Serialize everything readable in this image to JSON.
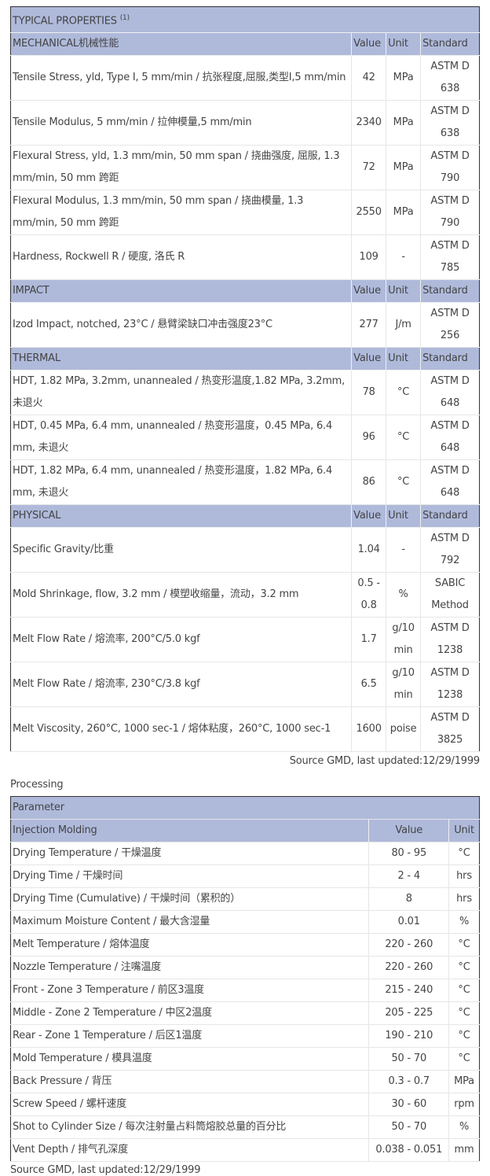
{
  "properties": {
    "title": "TYPICAL PROPERTIES",
    "title_sup": "(1)",
    "columns": {
      "value": "Value",
      "unit": "Unit",
      "standard": "Standard"
    },
    "sections": [
      {
        "name": "MECHANICAL机械性能",
        "rows": [
          {
            "p": "Tensile Stress, yld, Type I, 5 mm/min / 抗张程度,屈服,类型I,5 mm/min",
            "v": "42",
            "u": "MPa",
            "s": "ASTM D 638"
          },
          {
            "p": "Tensile Modulus, 5 mm/min / 拉伸模量,5 mm/min",
            "v": "2340",
            "u": "MPa",
            "s": "ASTM D 638"
          },
          {
            "p": "Flexural Stress, yld, 1.3 mm/min, 50 mm span / 挠曲强度, 屈服, 1.3 mm/min, 50 mm 跨距",
            "v": "72",
            "u": "MPa",
            "s": "ASTM D 790"
          },
          {
            "p": "Flexural Modulus, 1.3 mm/min, 50 mm span / 挠曲模量, 1.3 mm/min, 50 mm 跨距",
            "v": "2550",
            "u": "MPa",
            "s": "ASTM D 790"
          },
          {
            "p": "Hardness, Rockwell R / 硬度, 洛氏 R",
            "v": "109",
            "u": "-",
            "s": "ASTM D 785"
          }
        ]
      },
      {
        "name": "IMPACT",
        "rows": [
          {
            "p": "Izod Impact, notched, 23°C / 悬臂梁缺口冲击强度23°C",
            "v": "277",
            "u": "J/m",
            "s": "ASTM D 256"
          }
        ]
      },
      {
        "name": "THERMAL",
        "rows": [
          {
            "p": "HDT, 1.82 MPa, 3.2mm, unannealed / 热变形温度,1.82 MPa, 3.2mm,未退火",
            "v": "78",
            "u": "°C",
            "s": "ASTM D 648"
          },
          {
            "p": "HDT, 0.45 MPa, 6.4 mm, unannealed / 热变形温度，0.45 MPa, 6.4 mm, 未退火",
            "v": "96",
            "u": "°C",
            "s": "ASTM D 648"
          },
          {
            "p": "HDT, 1.82 MPa, 6.4 mm, unannealed / 热变形温度，1.82 MPa, 6.4 mm, 未退火",
            "v": "86",
            "u": "°C",
            "s": "ASTM D 648"
          }
        ]
      },
      {
        "name": "PHYSICAL",
        "rows": [
          {
            "p": "Specific Gravity/比重",
            "v": "1.04",
            "u": "-",
            "s": "ASTM D 792"
          },
          {
            "p": "Mold Shrinkage, flow, 3.2 mm / 模塑收缩量，流动，3.2 mm",
            "v": "0.5 - 0.8",
            "u": "%",
            "s": "SABIC Method"
          },
          {
            "p": "Melt Flow Rate / 熔流率, 200°C/5.0 kgf",
            "v": "1.7",
            "u": "g/10 min",
            "s": "ASTM D 1238"
          },
          {
            "p": "Melt Flow Rate / 熔流率, 230°C/3.8 kgf",
            "v": "6.5",
            "u": "g/10 min",
            "s": "ASTM D 1238"
          },
          {
            "p": "Melt Viscosity, 260°C, 1000 sec-1 / 熔体粘度，260°C, 1000 sec-1",
            "v": "1600",
            "u": "poise",
            "s": "ASTM D 3825"
          }
        ]
      }
    ],
    "source": "Source GMD, last updated:12/29/1999"
  },
  "processing": {
    "heading": "Processing",
    "parameter": "Parameter",
    "section": "Injection Molding",
    "value": "Value",
    "unit": "Unit",
    "rows": [
      {
        "p": "Drying Temperature / 干燥温度",
        "v": "80 - 95",
        "u": "°C"
      },
      {
        "p": "Drying Time / 干燥时间",
        "v": "2 - 4",
        "u": "hrs"
      },
      {
        "p": "Drying Time (Cumulative) / 干燥时间（累积的）",
        "v": "8",
        "u": "hrs"
      },
      {
        "p": "Maximum Moisture Content / 最大含湿量",
        "v": "0.01",
        "u": "%"
      },
      {
        "p": "Melt Temperature / 熔体温度",
        "v": "220 - 260",
        "u": "°C"
      },
      {
        "p": "Nozzle Temperature / 注嘴温度",
        "v": "220 - 260",
        "u": "°C"
      },
      {
        "p": "Front - Zone 3 Temperature / 前区3温度",
        "v": "215 - 240",
        "u": "°C"
      },
      {
        "p": "Middle - Zone 2 Temperature / 中区2温度",
        "v": "205 - 225",
        "u": "°C"
      },
      {
        "p": "Rear - Zone 1 Temperature / 后区1温度",
        "v": "190 - 210",
        "u": "°C"
      },
      {
        "p": "Mold Temperature / 模具温度",
        "v": "50 - 70",
        "u": "°C"
      },
      {
        "p": "Back Pressure / 背压",
        "v": "0.3 - 0.7",
        "u": "MPa"
      },
      {
        "p": "Screw Speed / 螺杆速度",
        "v": "30 - 60",
        "u": "rpm"
      },
      {
        "p": "Shot to Cylinder Size / 每次注射量占料筒熔胶总量的百分比",
        "v": "50 - 70",
        "u": "%"
      },
      {
        "p": "Vent Depth / 排气孔深度",
        "v": "0.038 - 0.051",
        "u": "mm"
      }
    ],
    "source": "Source GMD, last updated:12/29/1999"
  }
}
